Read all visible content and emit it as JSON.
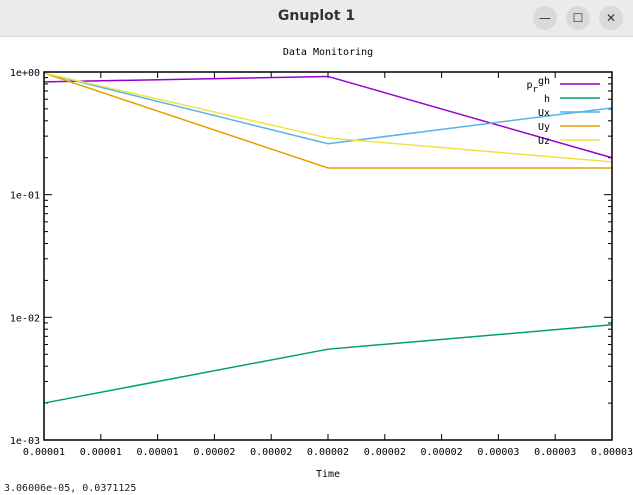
{
  "window": {
    "title": "Gnuplot 1",
    "status": "3.06006e-05,  0.0371125",
    "minimize": "—",
    "maximize": "☐",
    "close": "✕"
  },
  "colors": {
    "purple": "#9400d3",
    "teal": "#009e73",
    "blue": "#56b4e9",
    "orange": "#e69f00",
    "yellow": "#f0e442"
  },
  "chart_data": {
    "type": "line",
    "title": "Data Monitoring",
    "xlabel": "Time",
    "ylabel": "",
    "xlim": [
      1e-05,
      3e-05
    ],
    "ylim": [
      0.001,
      1
    ],
    "yscale": "log",
    "x_tick_labels": [
      "0.00001",
      "0.00001",
      "0.00001",
      "0.00002",
      "0.00002",
      "0.00002",
      "0.00002",
      "0.00002",
      "0.00003",
      "0.00003",
      "0.00003"
    ],
    "y_tick_labels": [
      "1e+00",
      "1e-01",
      "1e-02",
      "1e-03"
    ],
    "legend": "top-right",
    "x": [
      1e-05,
      2e-05,
      3e-05
    ],
    "series": [
      {
        "name": "p_rgh",
        "color": "#9400d3",
        "values": [
          0.83,
          0.92,
          0.2
        ]
      },
      {
        "name": "h",
        "color": "#009e73",
        "values": [
          0.002,
          0.0055,
          0.0087
        ]
      },
      {
        "name": "Ux",
        "color": "#56b4e9",
        "values": [
          0.98,
          0.26,
          0.51
        ]
      },
      {
        "name": "Uy",
        "color": "#e69f00",
        "values": [
          0.98,
          0.165,
          0.165
        ]
      },
      {
        "name": "Uz",
        "color": "#f0e442",
        "values": [
          0.98,
          0.29,
          0.185
        ]
      }
    ]
  }
}
